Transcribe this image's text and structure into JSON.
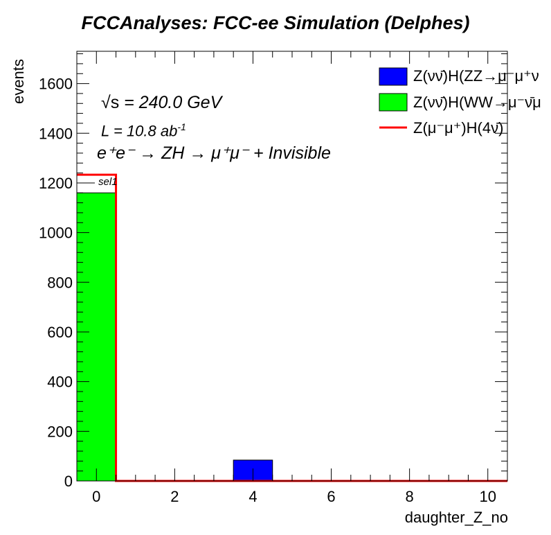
{
  "header": {
    "title": "FCCAnalyses: FCC-ee Simulation (Delphes)"
  },
  "annotations": {
    "energy_sqrt": "√s",
    "energy_value": " = 240.0 GeV",
    "lumi_base": "L = 10.8 ab",
    "lumi_exp": "-1",
    "process": "e⁺e⁻ → ZH → μ⁺μ⁻ + Invisible",
    "selection": "sel1"
  },
  "legend": [
    {
      "label": "Z(νν̄)H(ZZ→μ⁻μ⁺ν",
      "color": "#0000ff",
      "kind": "box"
    },
    {
      "label": "Z(νν̄)H(WW→μ⁻ν̄μ",
      "color": "#00ff00",
      "kind": "box"
    },
    {
      "label": "Z(μ⁻μ⁺)H(4ν̄)",
      "color": "#ff0000",
      "kind": "line"
    }
  ],
  "chart_data": {
    "type": "bar",
    "title": "FCCAnalyses: FCC-ee Simulation (Delphes)",
    "xlabel": "daughter_Z_no",
    "ylabel": "events",
    "xlim": [
      -0.5,
      10.5
    ],
    "ylim": [
      0,
      1730
    ],
    "x_ticks": [
      0,
      2,
      4,
      6,
      8,
      10
    ],
    "y_ticks": [
      0,
      200,
      400,
      600,
      800,
      1000,
      1200,
      1400,
      1600
    ],
    "bin_edges": [
      -0.5,
      0.5,
      1.5,
      2.5,
      3.5,
      4.5,
      5.5,
      6.5,
      7.5,
      8.5,
      9.5,
      10.5
    ],
    "series": [
      {
        "name": "Z(νν̄)H(ZZ→μ⁻μ⁺ν",
        "style": "stacked-fill",
        "color": "#0000ff",
        "values": [
          0,
          0,
          0,
          0,
          84,
          0,
          0,
          0,
          0,
          0,
          0
        ]
      },
      {
        "name": "Z(νν̄)H(WW→μ⁻ν̄μ",
        "style": "stacked-fill",
        "color": "#00ff00",
        "values": [
          1160,
          0,
          0,
          0,
          0,
          0,
          0,
          0,
          0,
          0,
          0
        ]
      },
      {
        "name": "Z(μ⁻μ⁺)H(4ν̄)",
        "style": "line",
        "color": "#ff0000",
        "values": [
          1233,
          0,
          0,
          0,
          0,
          0,
          0,
          0,
          0,
          0,
          0
        ]
      }
    ],
    "grid": false,
    "legend_position": "top-right"
  }
}
